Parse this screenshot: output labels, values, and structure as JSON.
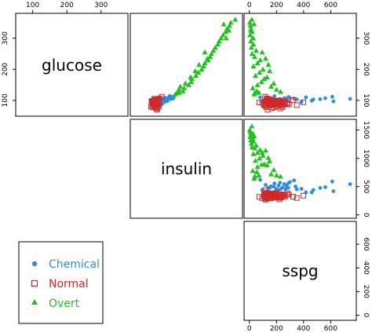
{
  "chart_data": {
    "type": "scatter",
    "variables": [
      "glucose",
      "insulin",
      "sspg"
    ],
    "ticks": {
      "glucose": [
        "100",
        "200",
        "300"
      ],
      "insulin": [
        "0",
        "500",
        "1000",
        "1500"
      ],
      "sspg": [
        "0",
        "200",
        "400",
        "600"
      ]
    },
    "ranges": {
      "glucose": [
        62,
        367
      ],
      "insulin": [
        10,
        1620
      ],
      "sspg": [
        -10,
        760
      ]
    },
    "legend": {
      "position": "bottom-left"
    },
    "series": [
      {
        "name": "Chemical",
        "color": "#2E8FE0",
        "marker": "filled-circle",
        "points": [
          [
            98,
            478,
            151
          ],
          [
            88,
            439,
            208
          ],
          [
            100,
            429,
            201
          ],
          [
            110,
            413,
            133
          ],
          [
            101,
            398,
            143
          ],
          [
            106,
            460,
            266
          ],
          [
            109,
            481,
            287
          ],
          [
            93,
            425,
            201
          ],
          [
            101,
            520,
            215
          ],
          [
            107,
            546,
            258
          ],
          [
            105,
            529,
            270
          ],
          [
            104,
            570,
            226
          ],
          [
            102,
            486,
            245
          ],
          [
            114,
            557,
            185
          ],
          [
            100,
            460,
            199
          ],
          [
            110,
            400,
            418
          ],
          [
            95,
            459,
            384
          ],
          [
            98,
            521,
            274
          ],
          [
            104,
            503,
            340
          ],
          [
            111,
            563,
            290
          ],
          [
            93,
            410,
            205
          ],
          [
            103,
            440,
            472
          ],
          [
            108,
            580,
            300
          ],
          [
            106,
            610,
            330
          ],
          [
            112,
            590,
            612
          ],
          [
            104,
            477,
            522
          ],
          [
            97,
            418,
            620
          ],
          [
            107,
            490,
            560
          ],
          [
            105,
            545,
            744
          ],
          [
            99,
            399,
            460
          ],
          [
            103,
            452,
            350
          ],
          [
            95,
            480,
            140
          ],
          [
            105,
            505,
            160
          ],
          [
            106,
            500,
            180
          ],
          [
            108,
            530,
            120
          ],
          [
            101,
            455,
            230
          ],
          [
            96,
            442,
            95
          ],
          [
            110,
            620,
            80
          ]
        ]
      },
      {
        "name": "Normal",
        "color": "#CC2A2A",
        "marker": "open-square",
        "points": [
          [
            80,
            356,
            124
          ],
          [
            97,
            289,
            117
          ],
          [
            105,
            319,
            143
          ],
          [
            90,
            356,
            199
          ],
          [
            90,
            323,
            240
          ],
          [
            86,
            381,
            157
          ],
          [
            100,
            350,
            221
          ],
          [
            85,
            301,
            186
          ],
          [
            97,
            379,
            142
          ],
          [
            97,
            296,
            131
          ],
          [
            91,
            353,
            221
          ],
          [
            87,
            306,
            178
          ],
          [
            78,
            290,
            136
          ],
          [
            90,
            371,
            200
          ],
          [
            86,
            312,
            208
          ],
          [
            80,
            393,
            202
          ],
          [
            90,
            364,
            152
          ],
          [
            99,
            359,
            185
          ],
          [
            85,
            296,
            116
          ],
          [
            90,
            345,
            123
          ],
          [
            90,
            378,
            136
          ],
          [
            88,
            304,
            134
          ],
          [
            95,
            347,
            184
          ],
          [
            90,
            327,
            192
          ],
          [
            92,
            386,
            279
          ],
          [
            74,
            365,
            228
          ],
          [
            98,
            365,
            145
          ],
          [
            100,
            352,
            172
          ],
          [
            86,
            325,
            179
          ],
          [
            98,
            321,
            222
          ],
          [
            70,
            360,
            134
          ],
          [
            99,
            336,
            143
          ],
          [
            75,
            352,
            169
          ],
          [
            90,
            353,
            263
          ],
          [
            85,
            373,
            174
          ],
          [
            99,
            376,
            134
          ],
          [
            78,
            335,
            182
          ],
          [
            106,
            396,
            128
          ],
          [
            98,
            277,
            222
          ],
          [
            102,
            378,
            165
          ],
          [
            90,
            360,
            282
          ],
          [
            94,
            291,
            94
          ],
          [
            80,
            269,
            121
          ],
          [
            93,
            318,
            73
          ],
          [
            86,
            328,
            106
          ],
          [
            85,
            334,
            118
          ],
          [
            96,
            356,
            112
          ],
          [
            88,
            291,
            157
          ],
          [
            87,
            360,
            292
          ],
          [
            94,
            313,
            200
          ],
          [
            93,
            306,
            220
          ],
          [
            86,
            319,
            144
          ],
          [
            86,
            349,
            109
          ],
          [
            96,
            332,
            151
          ],
          [
            86,
            308,
            224
          ],
          [
            89,
            372,
            109
          ],
          [
            83,
            320,
            240
          ],
          [
            85,
            299,
            350
          ],
          [
            112,
            436,
            116
          ],
          [
            88,
            340,
            255
          ],
          [
            79,
            345,
            246
          ],
          [
            96,
            343,
            262
          ],
          [
            101,
            322,
            322
          ],
          [
            92,
            346,
            156
          ],
          [
            94,
            340,
            398
          ],
          [
            87,
            350,
            168
          ],
          [
            92,
            320,
            262
          ],
          [
            102,
            330,
            148
          ],
          [
            90,
            305,
            230
          ],
          [
            89,
            352,
            185
          ],
          [
            98,
            306,
            125
          ],
          [
            93,
            356,
            212
          ],
          [
            91,
            334,
            168
          ],
          [
            97,
            338,
            188
          ],
          [
            84,
            318,
            150
          ],
          [
            95,
            362,
            237
          ]
        ]
      },
      {
        "name": "Overt",
        "color": "#22C122",
        "marker": "filled-triangle",
        "points": [
          [
            120,
            643,
            35
          ],
          [
            124,
            682,
            40
          ],
          [
            130,
            760,
            55
          ],
          [
            125,
            700,
            70
          ],
          [
            140,
            780,
            25
          ],
          [
            150,
            850,
            60
          ],
          [
            160,
            890,
            90
          ],
          [
            170,
            900,
            110
          ],
          [
            180,
            960,
            45
          ],
          [
            190,
            1000,
            75
          ],
          [
            200,
            1050,
            100
          ],
          [
            210,
            1080,
            30
          ],
          [
            220,
            1100,
            60
          ],
          [
            230,
            1150,
            80
          ],
          [
            240,
            1180,
            40
          ],
          [
            250,
            1200,
            20
          ],
          [
            260,
            1230,
            50
          ],
          [
            270,
            1260,
            15
          ],
          [
            280,
            1300,
            30
          ],
          [
            290,
            1320,
            10
          ],
          [
            300,
            1350,
            25
          ],
          [
            310,
            1380,
            5
          ],
          [
            320,
            1420,
            20
          ],
          [
            330,
            1440,
            12
          ],
          [
            340,
            1480,
            8
          ],
          [
            350,
            1500,
            3
          ],
          [
            360,
            1568,
            18
          ],
          [
            345,
            1390,
            35
          ],
          [
            325,
            1470,
            10
          ],
          [
            300,
            1430,
            28
          ],
          [
            255,
            1100,
            95
          ],
          [
            235,
            1140,
            120
          ],
          [
            215,
            1010,
            140
          ],
          [
            195,
            950,
            150
          ],
          [
            175,
            880,
            130
          ],
          [
            155,
            800,
            180
          ],
          [
            145,
            720,
            160
          ],
          [
            135,
            700,
            200
          ],
          [
            128,
            680,
            230
          ]
        ]
      }
    ]
  }
}
